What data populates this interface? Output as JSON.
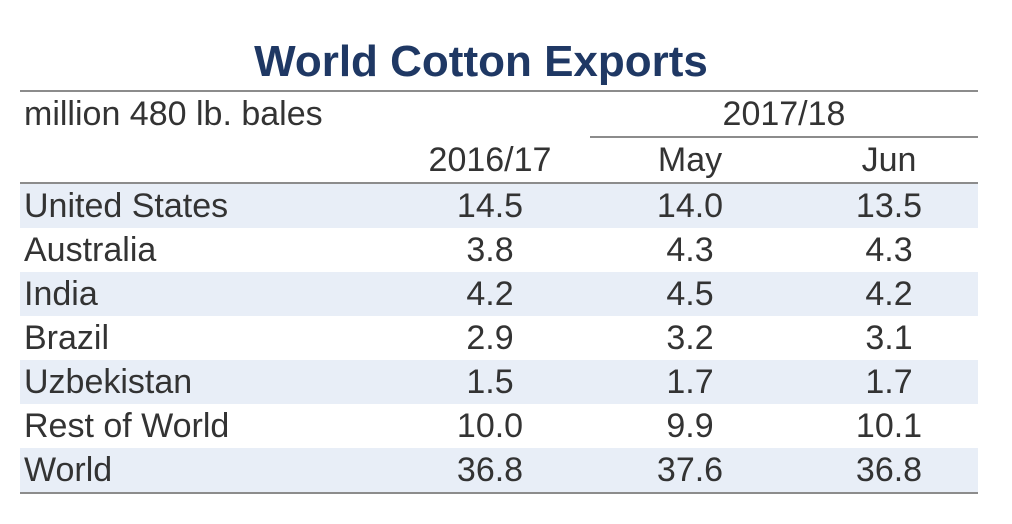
{
  "chart_data": {
    "type": "table",
    "title": "World Cotton Exports",
    "units": "million 480 lb. bales",
    "group_header": "2017/18",
    "columns": [
      "2016/17",
      "May",
      "Jun"
    ],
    "rows": [
      {
        "country": "United States",
        "values": [
          "14.5",
          "14.0",
          "13.5"
        ]
      },
      {
        "country": "Australia",
        "values": [
          "3.8",
          "4.3",
          "4.3"
        ]
      },
      {
        "country": "India",
        "values": [
          "4.2",
          "4.5",
          "4.2"
        ]
      },
      {
        "country": "Brazil",
        "values": [
          "2.9",
          "3.2",
          "3.1"
        ]
      },
      {
        "country": "Uzbekistan",
        "values": [
          "1.5",
          "1.7",
          "1.7"
        ]
      },
      {
        "country": "Rest of World",
        "values": [
          "10.0",
          "9.9",
          "10.1"
        ]
      },
      {
        "country": "World",
        "values": [
          "36.8",
          "37.6",
          "36.8"
        ]
      }
    ]
  },
  "colors": {
    "title": "#1f3864",
    "row_shade": "#e8eef7",
    "rule": "#8c8c8c"
  }
}
